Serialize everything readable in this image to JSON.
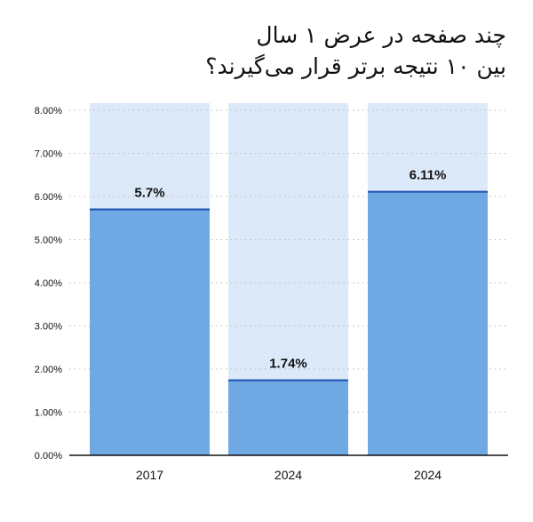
{
  "chart_data": {
    "type": "bar",
    "title": [
      "چند صفحه در عرض ۱ سال",
      "بین ۱۰ نتیجه برتر قرار می‌گیرند؟"
    ],
    "categories": [
      "2017",
      "2024",
      "2024"
    ],
    "values": [
      5.7,
      1.74,
      6.11
    ],
    "data_labels": [
      "5.7%",
      "1.74%",
      "6.11%"
    ],
    "ylim": [
      0,
      8
    ],
    "yticks": [
      0,
      1,
      2,
      3,
      4,
      5,
      6,
      7,
      8
    ],
    "ytick_labels": [
      "0.00%",
      "1.00%",
      "2.00%",
      "3.00%",
      "4.00%",
      "5.00%",
      "6.00%",
      "7.00%",
      "8.00%"
    ],
    "xlabel": "",
    "ylabel": "",
    "grid": true,
    "legend": false
  },
  "colors": {
    "bar_fill": "#6fa8e2",
    "bar_top_line": "#1f4fb4",
    "bar_background": "#dce9f8",
    "gridline": "#bbbbbb",
    "axis": "#111111",
    "text": "#111111"
  }
}
